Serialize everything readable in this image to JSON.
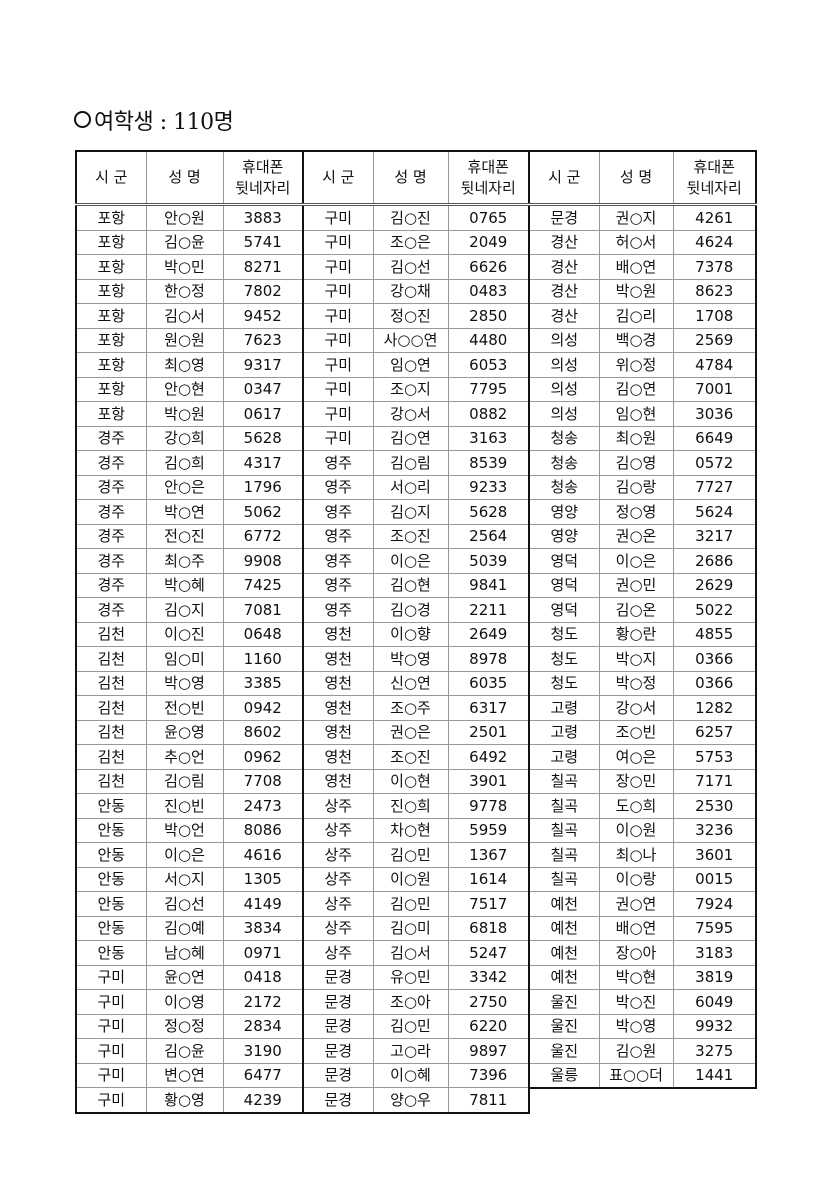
{
  "title": "여학생 : 110명",
  "headers": {
    "city": "시 군",
    "name": "성 명",
    "phone": "휴대폰 뒷네자리"
  },
  "groups": [
    [
      [
        "포항",
        "안○원",
        "3883"
      ],
      [
        "포항",
        "김○윤",
        "5741"
      ],
      [
        "포항",
        "박○민",
        "8271"
      ],
      [
        "포항",
        "한○정",
        "7802"
      ],
      [
        "포항",
        "김○서",
        "9452"
      ],
      [
        "포항",
        "원○원",
        "7623"
      ],
      [
        "포항",
        "최○영",
        "9317"
      ],
      [
        "포항",
        "안○현",
        "0347"
      ],
      [
        "포항",
        "박○원",
        "0617"
      ],
      [
        "경주",
        "강○희",
        "5628"
      ],
      [
        "경주",
        "김○희",
        "4317"
      ],
      [
        "경주",
        "안○은",
        "1796"
      ],
      [
        "경주",
        "박○연",
        "5062"
      ],
      [
        "경주",
        "전○진",
        "6772"
      ],
      [
        "경주",
        "최○주",
        "9908"
      ],
      [
        "경주",
        "박○혜",
        "7425"
      ],
      [
        "경주",
        "김○지",
        "7081"
      ],
      [
        "김천",
        "이○진",
        "0648"
      ],
      [
        "김천",
        "임○미",
        "1160"
      ],
      [
        "김천",
        "박○영",
        "3385"
      ],
      [
        "김천",
        "전○빈",
        "0942"
      ],
      [
        "김천",
        "윤○영",
        "8602"
      ],
      [
        "김천",
        "추○언",
        "0962"
      ],
      [
        "김천",
        "김○림",
        "7708"
      ],
      [
        "안동",
        "진○빈",
        "2473"
      ],
      [
        "안동",
        "박○언",
        "8086"
      ],
      [
        "안동",
        "이○은",
        "4616"
      ],
      [
        "안동",
        "서○지",
        "1305"
      ],
      [
        "안동",
        "김○선",
        "4149"
      ],
      [
        "안동",
        "김○예",
        "3834"
      ],
      [
        "안동",
        "남○혜",
        "0971"
      ],
      [
        "구미",
        "윤○연",
        "0418"
      ],
      [
        "구미",
        "이○영",
        "2172"
      ],
      [
        "구미",
        "정○정",
        "2834"
      ],
      [
        "구미",
        "김○윤",
        "3190"
      ],
      [
        "구미",
        "변○연",
        "6477"
      ],
      [
        "구미",
        "황○영",
        "4239"
      ]
    ],
    [
      [
        "구미",
        "김○진",
        "0765"
      ],
      [
        "구미",
        "조○은",
        "2049"
      ],
      [
        "구미",
        "김○선",
        "6626"
      ],
      [
        "구미",
        "강○채",
        "0483"
      ],
      [
        "구미",
        "정○진",
        "2850"
      ],
      [
        "구미",
        "사○○연",
        "4480"
      ],
      [
        "구미",
        "임○연",
        "6053"
      ],
      [
        "구미",
        "조○지",
        "7795"
      ],
      [
        "구미",
        "강○서",
        "0882"
      ],
      [
        "구미",
        "김○연",
        "3163"
      ],
      [
        "영주",
        "김○림",
        "8539"
      ],
      [
        "영주",
        "서○리",
        "9233"
      ],
      [
        "영주",
        "김○지",
        "5628"
      ],
      [
        "영주",
        "조○진",
        "2564"
      ],
      [
        "영주",
        "이○은",
        "5039"
      ],
      [
        "영주",
        "김○현",
        "9841"
      ],
      [
        "영주",
        "김○경",
        "2211"
      ],
      [
        "영천",
        "이○향",
        "2649"
      ],
      [
        "영천",
        "박○영",
        "8978"
      ],
      [
        "영천",
        "신○연",
        "6035"
      ],
      [
        "영천",
        "조○주",
        "6317"
      ],
      [
        "영천",
        "권○은",
        "2501"
      ],
      [
        "영천",
        "조○진",
        "6492"
      ],
      [
        "영천",
        "이○현",
        "3901"
      ],
      [
        "상주",
        "진○희",
        "9778"
      ],
      [
        "상주",
        "차○현",
        "5959"
      ],
      [
        "상주",
        "김○민",
        "1367"
      ],
      [
        "상주",
        "이○원",
        "1614"
      ],
      [
        "상주",
        "김○민",
        "7517"
      ],
      [
        "상주",
        "김○미",
        "6818"
      ],
      [
        "상주",
        "김○서",
        "5247"
      ],
      [
        "문경",
        "유○민",
        "3342"
      ],
      [
        "문경",
        "조○아",
        "2750"
      ],
      [
        "문경",
        "김○민",
        "6220"
      ],
      [
        "문경",
        "고○라",
        "9897"
      ],
      [
        "문경",
        "이○혜",
        "7396"
      ],
      [
        "문경",
        "양○우",
        "7811"
      ]
    ],
    [
      [
        "문경",
        "권○지",
        "4261"
      ],
      [
        "경산",
        "허○서",
        "4624"
      ],
      [
        "경산",
        "배○연",
        "7378"
      ],
      [
        "경산",
        "박○원",
        "8623"
      ],
      [
        "경산",
        "김○리",
        "1708"
      ],
      [
        "의성",
        "백○경",
        "2569"
      ],
      [
        "의성",
        "위○정",
        "4784"
      ],
      [
        "의성",
        "김○연",
        "7001"
      ],
      [
        "의성",
        "임○현",
        "3036"
      ],
      [
        "청송",
        "최○원",
        "6649"
      ],
      [
        "청송",
        "김○영",
        "0572"
      ],
      [
        "청송",
        "김○랑",
        "7727"
      ],
      [
        "영양",
        "정○영",
        "5624"
      ],
      [
        "영양",
        "권○온",
        "3217"
      ],
      [
        "영덕",
        "이○은",
        "2686"
      ],
      [
        "영덕",
        "권○민",
        "2629"
      ],
      [
        "영덕",
        "김○온",
        "5022"
      ],
      [
        "청도",
        "황○란",
        "4855"
      ],
      [
        "청도",
        "박○지",
        "0366"
      ],
      [
        "청도",
        "박○정",
        "0366"
      ],
      [
        "고령",
        "강○서",
        "1282"
      ],
      [
        "고령",
        "조○빈",
        "6257"
      ],
      [
        "고령",
        "여○은",
        "5753"
      ],
      [
        "칠곡",
        "장○민",
        "7171"
      ],
      [
        "칠곡",
        "도○희",
        "2530"
      ],
      [
        "칠곡",
        "이○원",
        "3236"
      ],
      [
        "칠곡",
        "최○나",
        "3601"
      ],
      [
        "칠곡",
        "이○랑",
        "0015"
      ],
      [
        "예천",
        "권○연",
        "7924"
      ],
      [
        "예천",
        "배○연",
        "7595"
      ],
      [
        "예천",
        "장○아",
        "3183"
      ],
      [
        "예천",
        "박○현",
        "3819"
      ],
      [
        "울진",
        "박○진",
        "6049"
      ],
      [
        "울진",
        "박○영",
        "9932"
      ],
      [
        "울진",
        "김○원",
        "3275"
      ],
      [
        "울릉",
        "표○○더",
        "1441"
      ]
    ]
  ]
}
